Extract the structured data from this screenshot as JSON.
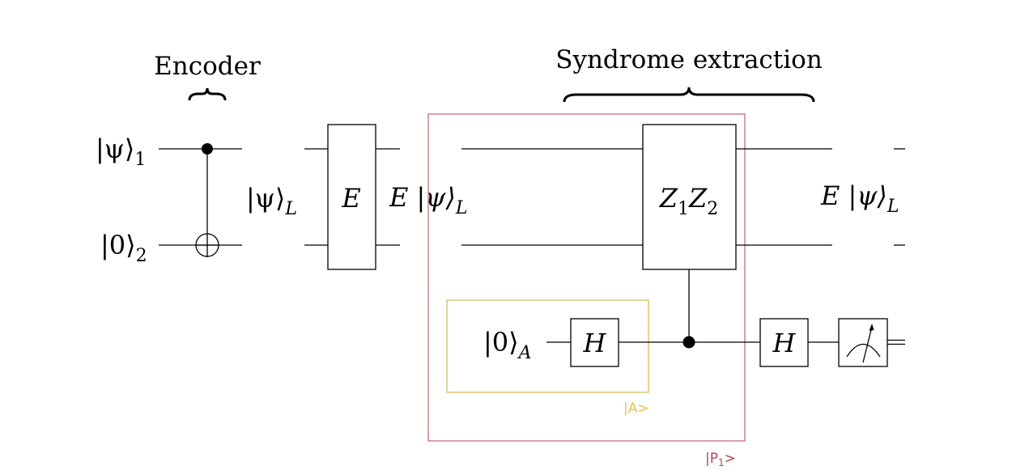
{
  "encoder": {
    "label": "Encoder",
    "ket_psi": "|ψ⟩",
    "ket_psi_sub": "1",
    "ket_zero": "|0⟩",
    "ket_zero_sub": "2"
  },
  "logical_state": {
    "text": "|ψ⟩",
    "sub": "L"
  },
  "error_gate": {
    "label": "E"
  },
  "after_error_state": {
    "text": "E |ψ⟩",
    "sub": "L"
  },
  "syndrome": {
    "label": "Syndrome extraction",
    "stabilizer_gate": {
      "z1": "Z",
      "z1_sub": "1",
      "z2": "Z",
      "z2_sub": "2"
    },
    "ancilla": {
      "text": "|0⟩",
      "sub": "A"
    },
    "hadamard_1": "H",
    "hadamard_2": "H"
  },
  "output_state": {
    "text": "E |ψ⟩",
    "sub": "L"
  },
  "highlight_boxes": {
    "ancilla_box": {
      "label": "|A>",
      "color": "#e8c440"
    },
    "p1_box": {
      "label": "|P",
      "label_sub": "1",
      "label_end": ">",
      "color": "#b5454f"
    }
  },
  "icons": {
    "measurement": "meter-icon",
    "control": "control-dot-icon",
    "target": "cnot-target-icon",
    "brace": "curly-brace-icon"
  }
}
